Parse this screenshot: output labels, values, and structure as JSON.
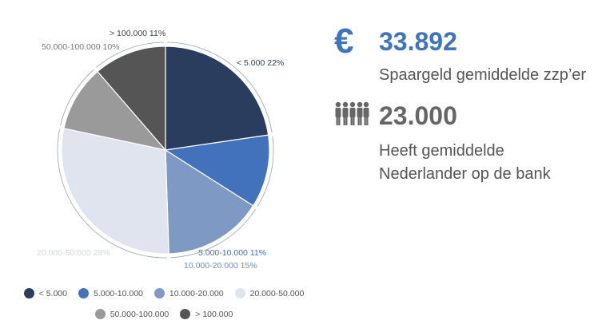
{
  "chart_data": {
    "type": "pie",
    "slices": [
      {
        "label": "< 5.000",
        "value": 22,
        "display": "< 5.000 22%",
        "color": "#2a3d5e"
      },
      {
        "label": "5.000-10.000",
        "value": 11,
        "display": "5.000-10.000 11%",
        "color": "#4272bb"
      },
      {
        "label": "10.000-20.000",
        "value": 15,
        "display": "10.000-20.000 15%",
        "color": "#7f99c5"
      },
      {
        "label": "20.000-50.000",
        "value": 28,
        "display": "20.000-50.000 28%",
        "color": "#dfe4ef"
      },
      {
        "label": "50.000-100.000",
        "value": 10,
        "display": "50.000-100.000 10%",
        "color": "#9a9a9a"
      },
      {
        "label": "> 100.000",
        "value": 11,
        "display": "> 100.000 11%",
        "color": "#555555"
      }
    ]
  },
  "stats": {
    "savings": {
      "icon": "euro-icon",
      "symbol": "€",
      "value": "33.892",
      "caption": "Spaargeld gemiddelde zzp’er",
      "color": "#3f75bf"
    },
    "bank": {
      "icon": "people-icon",
      "value": "23.000",
      "caption_line1": "Heeft gemiddelde",
      "caption_line2": "Nederlander op de bank",
      "color": "#666666"
    }
  }
}
